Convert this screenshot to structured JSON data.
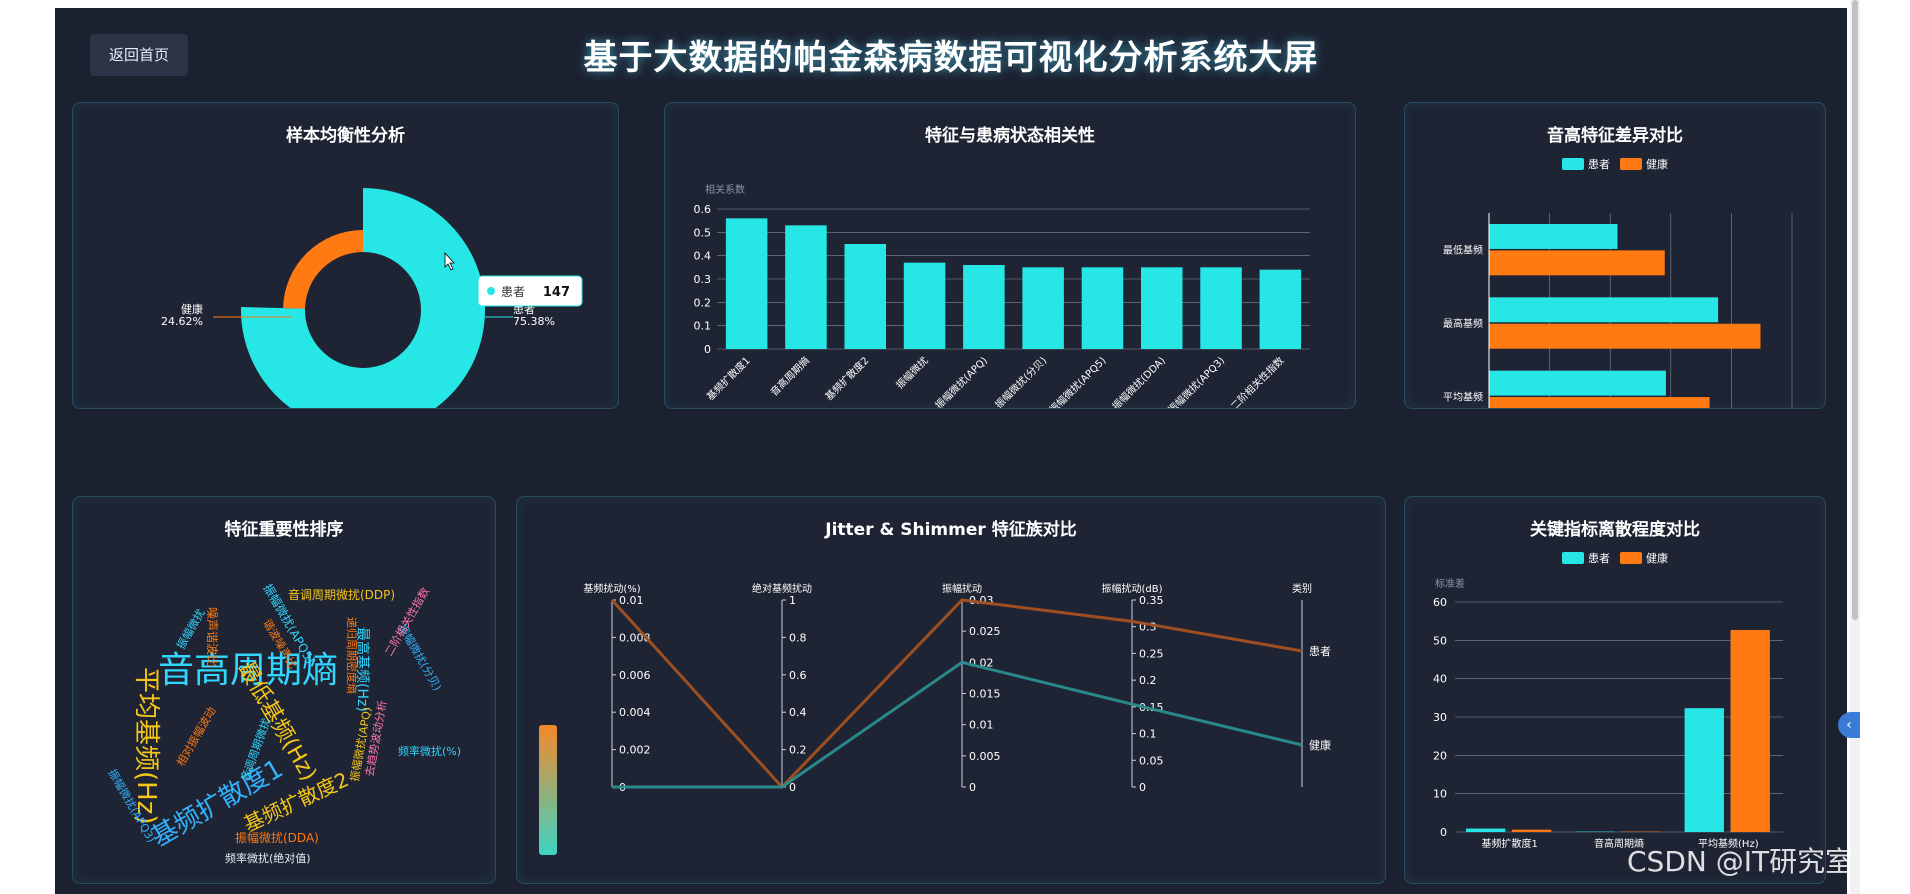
{
  "header": {
    "back_label": "返回首页",
    "title": "基于大数据的帕金森病数据可视化分析系统大屏"
  },
  "colors": {
    "patient": "#26e6e6",
    "healthy": "#ff7a12",
    "bg": "#1c2130"
  },
  "panels": {
    "balance": {
      "title": "样本均衡性分析"
    },
    "corr": {
      "title": "特征与患病状态相关性"
    },
    "pitch": {
      "title": "音高特征差异对比"
    },
    "importance": {
      "title": "特征重要性排序"
    },
    "jitter": {
      "title": "Jitter & Shimmer 特征族对比"
    },
    "dispersion": {
      "title": "关键指标离散程度对比"
    }
  },
  "tooltip": {
    "label": "患者",
    "value": "147"
  },
  "watermark": "CSDN @IT研究室",
  "chart_data": [
    {
      "id": "balance",
      "type": "pie",
      "title": "样本均衡性分析",
      "categories": [
        "患者",
        "健康"
      ],
      "values": [
        147,
        48
      ],
      "labels": [
        {
          "name": "健康",
          "percent": "24.62%"
        },
        {
          "name": "患者",
          "percent": "75.38%"
        }
      ],
      "legend": [
        "患者",
        "健康"
      ],
      "legend_position": "bottom"
    },
    {
      "id": "corr",
      "type": "bar",
      "title": "特征与患病状态相关性",
      "ylabel": "相关系数",
      "categories": [
        "基频扩散度1",
        "音高周期熵",
        "基频扩散度2",
        "振幅微扰",
        "振幅微扰(APQ)",
        "振幅微扰(分贝)",
        "振幅微扰(APQ5)",
        "振幅微扰(DDA)",
        "振幅微扰(APQ3)",
        "二阶相关性指数"
      ],
      "values": [
        0.56,
        0.53,
        0.45,
        0.37,
        0.36,
        0.35,
        0.35,
        0.35,
        0.35,
        0.34
      ],
      "ylim": [
        0,
        0.6
      ],
      "yticks": [
        "0",
        "0.1",
        "0.2",
        "0.3",
        "0.4",
        "0.5",
        "0.6"
      ]
    },
    {
      "id": "pitch",
      "type": "bar",
      "orientation": "horizontal",
      "title": "音高特征差异对比",
      "categories": [
        "平均基频",
        "最高基频",
        "最低基频"
      ],
      "series": [
        {
          "name": "患者",
          "values": [
            146,
            189,
            106
          ]
        },
        {
          "name": "健康",
          "values": [
            182,
            224,
            145
          ]
        }
      ],
      "xlim": [
        0,
        250
      ],
      "xticks": [
        "0",
        "50",
        "100",
        "150",
        "200",
        "250"
      ],
      "legend_position": "top"
    },
    {
      "id": "importance",
      "type": "wordcloud",
      "title": "特征重要性排序",
      "words": [
        "音高周期熵",
        "平均基频(Hz)",
        "基频扩散度1",
        "最低基频(Hz)",
        "基频扩散度2",
        "最高基频(Hz)",
        "音调周期微扰(DDP)",
        "振幅微扰(APQ5)",
        "噪声谐波比",
        "谐波噪声比",
        "振幅微扰(分贝)",
        "二阶相关性指数",
        "频率微扰(%)",
        "振幅微扰(APQ3)",
        "相对振幅波动",
        "音调周期微扰",
        "振幅微扰(APQ)",
        "去趋势波动分析",
        "振幅微扰(DDA)",
        "频率微扰(绝对值)",
        "振幅微扰",
        "递归周期密度熵"
      ]
    },
    {
      "id": "jitter",
      "type": "line",
      "subtype": "parallel",
      "title": "Jitter & Shimmer 特征族对比",
      "axes": [
        {
          "name": "基频扰动(%)",
          "ticks": [
            "0",
            "0.002",
            "0.004",
            "0.006",
            "0.008",
            "0.01"
          ],
          "min": 0,
          "max": 0.01
        },
        {
          "name": "绝对基频扰动",
          "ticks": [
            "0",
            "0.2",
            "0.4",
            "0.6",
            "0.8",
            "1"
          ],
          "min": 0,
          "max": 1
        },
        {
          "name": "振幅扰动",
          "ticks": [
            "0",
            "0.005",
            "0.01",
            "0.015",
            "0.02",
            "0.025",
            "0.03"
          ],
          "min": 0,
          "max": 0.03
        },
        {
          "name": "振幅扰动(dB)",
          "ticks": [
            "0",
            "0.05",
            "0.1",
            "0.15",
            "0.2",
            "0.25",
            "0.3",
            "0.35"
          ],
          "min": 0,
          "max": 0.35
        },
        {
          "name": "类别",
          "categories": [
            "健康",
            "患者"
          ]
        }
      ],
      "series": [
        {
          "name": "患者",
          "values": [
            0.01,
            0,
            0.03,
            0.31,
            "患者"
          ]
        },
        {
          "name": "健康",
          "values": [
            0,
            0,
            0.02,
            0.155,
            "健康"
          ]
        }
      ]
    },
    {
      "id": "dispersion",
      "type": "bar",
      "title": "关键指标离散程度对比",
      "ylabel": "标准差",
      "categories": [
        "基频扩散度1",
        "音高周期熵",
        "平均基频(Hz)"
      ],
      "series": [
        {
          "name": "患者",
          "values": [
            0.9,
            0.1,
            32.3
          ]
        },
        {
          "name": "健康",
          "values": [
            0.6,
            0.1,
            52.7
          ]
        }
      ],
      "ylim": [
        0,
        60
      ],
      "yticks": [
        "0",
        "10",
        "20",
        "30",
        "40",
        "50",
        "60"
      ],
      "legend_position": "top"
    }
  ]
}
